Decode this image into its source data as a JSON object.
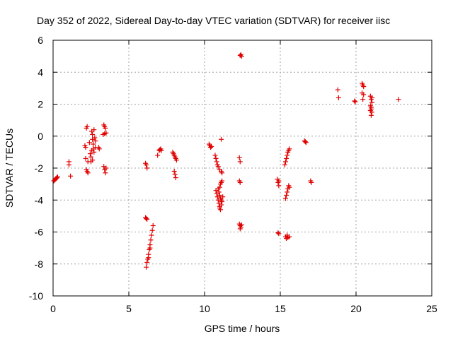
{
  "chart_data": {
    "type": "scatter",
    "title": "Day 352 of 2022, Sidereal Day-to-day VTEC variation (SDTVAR) for receiver iisc",
    "xlabel": "GPS time / hours",
    "ylabel": "SDTVAR / TECUs",
    "xlim": [
      0,
      25
    ],
    "ylim": [
      -10,
      6
    ],
    "xticks": [
      0,
      5,
      10,
      15,
      20,
      25
    ],
    "yticks": [
      -10,
      -8,
      -6,
      -4,
      -2,
      0,
      2,
      4,
      6
    ],
    "xtick_labels": [
      "0",
      "5",
      "10",
      "15",
      "20",
      "25"
    ],
    "ytick_labels": [
      "-10",
      "-8",
      "-6",
      "-4",
      "-2",
      "0",
      "2",
      "4",
      "6"
    ],
    "grid": true,
    "marker": "+",
    "color": "#e00000",
    "series": [
      {
        "name": "iisc",
        "points": [
          [
            0.05,
            -2.8
          ],
          [
            0.1,
            -2.75
          ],
          [
            0.15,
            -2.7
          ],
          [
            0.2,
            -2.65
          ],
          [
            0.25,
            -2.6
          ],
          [
            0.3,
            -2.55
          ],
          [
            1.05,
            -1.6
          ],
          [
            1.05,
            -1.8
          ],
          [
            1.15,
            -2.5
          ],
          [
            2.1,
            -0.6
          ],
          [
            2.15,
            -0.7
          ],
          [
            2.2,
            0.5
          ],
          [
            2.25,
            0.6
          ],
          [
            2.15,
            -1.4
          ],
          [
            2.2,
            -2.1
          ],
          [
            2.25,
            -2.2
          ],
          [
            2.3,
            -2.3
          ],
          [
            2.3,
            -1.6
          ],
          [
            2.4,
            -0.4
          ],
          [
            2.45,
            -1.1
          ],
          [
            2.5,
            -1.3
          ],
          [
            2.5,
            -1.6
          ],
          [
            2.55,
            0.3
          ],
          [
            2.6,
            0.1
          ],
          [
            2.6,
            -0.2
          ],
          [
            2.65,
            -0.5
          ],
          [
            2.65,
            -0.8
          ],
          [
            2.7,
            -1.0
          ],
          [
            2.7,
            0.4
          ],
          [
            2.75,
            -0.1
          ],
          [
            2.8,
            -0.3
          ],
          [
            2.8,
            -0.7
          ],
          [
            2.55,
            -0.9
          ],
          [
            2.6,
            -1.5
          ],
          [
            3.0,
            -0.7
          ],
          [
            3.05,
            -0.8
          ],
          [
            3.35,
            0.7
          ],
          [
            3.4,
            0.6
          ],
          [
            3.45,
            0.5
          ],
          [
            3.5,
            0.2
          ],
          [
            3.3,
            0.1
          ],
          [
            3.4,
            0.15
          ],
          [
            3.35,
            -1.9
          ],
          [
            3.4,
            -2.1
          ],
          [
            3.45,
            -2.3
          ],
          [
            3.5,
            -2.0
          ],
          [
            6.1,
            -1.7
          ],
          [
            6.15,
            -1.8
          ],
          [
            6.2,
            -2.0
          ],
          [
            6.1,
            -5.1
          ],
          [
            6.15,
            -5.15
          ],
          [
            6.2,
            -5.2
          ],
          [
            6.15,
            -8.2
          ],
          [
            6.2,
            -7.9
          ],
          [
            6.25,
            -7.7
          ],
          [
            6.3,
            -7.4
          ],
          [
            6.35,
            -7.1
          ],
          [
            6.4,
            -6.8
          ],
          [
            6.45,
            -6.5
          ],
          [
            6.5,
            -6.2
          ],
          [
            6.55,
            -5.9
          ],
          [
            6.6,
            -5.6
          ],
          [
            6.3,
            -7.6
          ],
          [
            6.4,
            -7.0
          ],
          [
            6.9,
            -1.2
          ],
          [
            7.0,
            -0.9
          ],
          [
            7.05,
            -0.85
          ],
          [
            7.1,
            -0.8
          ],
          [
            7.15,
            -0.9
          ],
          [
            7.9,
            -1.0
          ],
          [
            7.95,
            -1.1
          ],
          [
            8.0,
            -1.2
          ],
          [
            8.05,
            -1.3
          ],
          [
            8.1,
            -1.4
          ],
          [
            8.15,
            -1.5
          ],
          [
            8.0,
            -2.2
          ],
          [
            8.05,
            -2.4
          ],
          [
            8.1,
            -2.6
          ],
          [
            10.3,
            -0.5
          ],
          [
            10.35,
            -0.6
          ],
          [
            10.4,
            -0.7
          ],
          [
            10.45,
            -0.65
          ],
          [
            10.7,
            -1.2
          ],
          [
            10.75,
            -1.4
          ],
          [
            10.8,
            -1.6
          ],
          [
            10.85,
            -1.8
          ],
          [
            10.9,
            -1.9
          ],
          [
            11.0,
            -2.1
          ],
          [
            11.1,
            -2.2
          ],
          [
            11.15,
            -2.3
          ],
          [
            11.1,
            -0.2
          ],
          [
            10.75,
            -3.4
          ],
          [
            10.8,
            -3.6
          ],
          [
            10.85,
            -3.8
          ],
          [
            10.9,
            -4.0
          ],
          [
            10.95,
            -4.2
          ],
          [
            11.0,
            -4.4
          ],
          [
            11.05,
            -4.6
          ],
          [
            11.1,
            -4.3
          ],
          [
            11.15,
            -4.1
          ],
          [
            11.2,
            -3.8
          ],
          [
            11.0,
            -3.2
          ],
          [
            11.05,
            -3.0
          ],
          [
            11.1,
            -2.9
          ],
          [
            11.15,
            -2.8
          ],
          [
            10.9,
            -3.3
          ],
          [
            10.95,
            -3.5
          ],
          [
            11.0,
            -3.7
          ],
          [
            11.05,
            -3.9
          ],
          [
            11.1,
            -4.0
          ],
          [
            11.0,
            -4.5
          ],
          [
            12.35,
            5.05
          ],
          [
            12.4,
            5.1
          ],
          [
            12.45,
            5.0
          ],
          [
            12.3,
            -1.35
          ],
          [
            12.35,
            -1.6
          ],
          [
            12.3,
            -2.8
          ],
          [
            12.35,
            -2.9
          ],
          [
            12.3,
            -5.5
          ],
          [
            12.35,
            -5.6
          ],
          [
            12.4,
            -5.7
          ],
          [
            12.45,
            -5.55
          ],
          [
            12.35,
            -5.8
          ],
          [
            14.8,
            -2.7
          ],
          [
            14.85,
            -2.9
          ],
          [
            14.9,
            -3.1
          ],
          [
            14.9,
            -2.8
          ],
          [
            14.85,
            -6.05
          ],
          [
            14.9,
            -6.1
          ],
          [
            15.3,
            -1.8
          ],
          [
            15.35,
            -1.6
          ],
          [
            15.4,
            -1.4
          ],
          [
            15.45,
            -1.2
          ],
          [
            15.5,
            -1.0
          ],
          [
            15.55,
            -0.9
          ],
          [
            15.6,
            -0.8
          ],
          [
            15.35,
            -3.9
          ],
          [
            15.4,
            -3.7
          ],
          [
            15.45,
            -3.5
          ],
          [
            15.5,
            -3.3
          ],
          [
            15.55,
            -3.1
          ],
          [
            15.6,
            -3.2
          ],
          [
            15.35,
            -6.3
          ],
          [
            15.4,
            -6.4
          ],
          [
            15.45,
            -6.2
          ],
          [
            15.5,
            -6.35
          ],
          [
            15.6,
            -6.3
          ],
          [
            16.6,
            -0.3
          ],
          [
            16.65,
            -0.35
          ],
          [
            16.7,
            -0.4
          ],
          [
            17.0,
            -2.8
          ],
          [
            17.05,
            -2.9
          ],
          [
            18.8,
            2.9
          ],
          [
            18.85,
            2.4
          ],
          [
            19.9,
            2.2
          ],
          [
            19.95,
            2.15
          ],
          [
            20.4,
            3.3
          ],
          [
            20.45,
            3.2
          ],
          [
            20.5,
            3.1
          ],
          [
            20.4,
            2.7
          ],
          [
            20.5,
            2.6
          ],
          [
            20.45,
            2.3
          ],
          [
            20.95,
            2.5
          ],
          [
            21.0,
            2.3
          ],
          [
            21.05,
            2.1
          ],
          [
            20.95,
            1.9
          ],
          [
            21.0,
            1.7
          ],
          [
            21.05,
            1.5
          ],
          [
            20.95,
            1.6
          ],
          [
            21.0,
            1.3
          ],
          [
            21.05,
            2.4
          ],
          [
            21.0,
            1.8
          ],
          [
            22.8,
            2.3
          ]
        ]
      }
    ]
  }
}
